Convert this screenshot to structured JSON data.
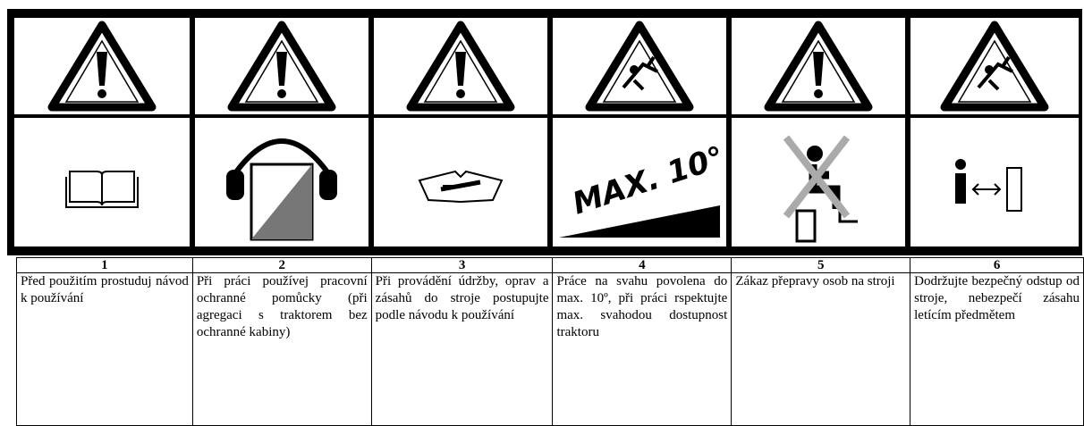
{
  "columns": [
    {
      "number": "1",
      "text": "Před použitím prostuduj návod k používání"
    },
    {
      "number": "2",
      "text": "Při práci používej pracovní ochranné pomůcky (při agregaci s traktorem bez ochranné kabiny)"
    },
    {
      "number": "3",
      "text": "Při provádění údržby, oprav a zásahů do stroje postupujte podle návodu k používání"
    },
    {
      "number": "4",
      "text": "Práce na svahu povolena do max. 10º, při práci rspektujte max. svahodou dostupnost traktoru",
      "sign_text": "MAX. 10°"
    },
    {
      "number": "5",
      "text": "Zákaz přepravy osob na stroji"
    },
    {
      "number": "6",
      "text": "Dodržujte bezpečný odstup od stroje, nebezpečí zásahu letícím předmětem"
    }
  ]
}
